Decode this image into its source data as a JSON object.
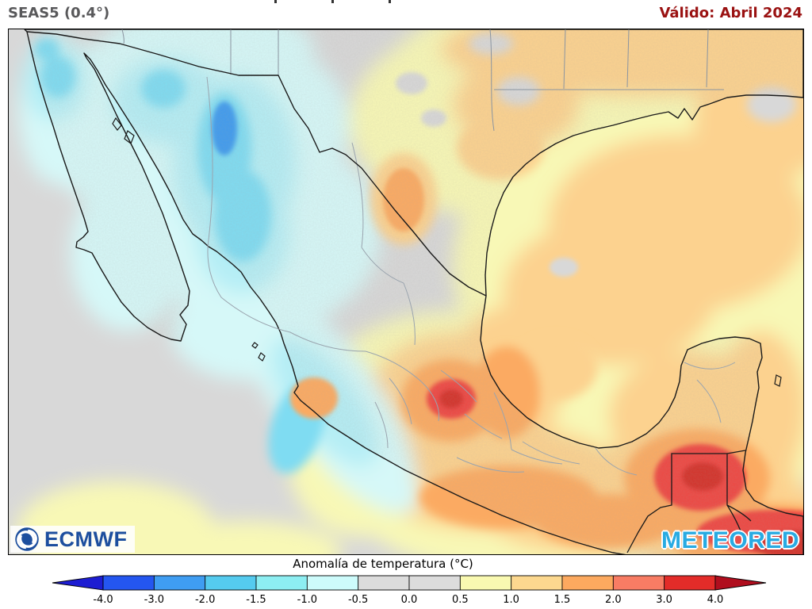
{
  "header": {
    "model": "SEAS5 (0.4°)",
    "valid": "Válido: Abril 2024"
  },
  "logos": {
    "ecmwf": "ECMWF",
    "meteored": "METEORED"
  },
  "colorbar": {
    "title": "Anomalía de temperatura (°C)",
    "ticks": [
      "-4.0",
      "-3.0",
      "-2.0",
      "-1.5",
      "-1.0",
      "-0.5",
      "0.0",
      "0.5",
      "1.0",
      "1.5",
      "2.0",
      "3.0",
      "4.0"
    ],
    "segment_colors": [
      "#2456f0",
      "#3f9df2",
      "#55cbef",
      "#8deef2",
      "#cdfbfb",
      "#dcdcdc",
      "#dcdcdc",
      "#f9f9b1",
      "#fcd88f",
      "#fca95f",
      "#f87c64",
      "#e32c29"
    ],
    "arrow_left_color": "#1d1dd2",
    "arrow_right_color": "#b00e1e"
  },
  "palette": {
    "yellow": "#f8f8b6",
    "tan": "#fcd28f",
    "orange": "#fbaa62",
    "red": "#ee4742",
    "deep_red": "#d4302c",
    "gray": "#d8d8d8",
    "cyan_pale": "#d6f8f8",
    "cyan_light": "#b5eef5",
    "cyan": "#7fdcf2",
    "blue": "#3f9bee"
  },
  "colors": {
    "header_model_text": "#59595b",
    "valid_text": "#9a1212",
    "ecmwf_blue": "#1d4f9e",
    "meteored_blue": "#29abe2",
    "ocean_neutral": "#d8d8d8"
  },
  "map_summary": {
    "northwest_mexico_anomaly": "-0.5 to -3",
    "gulf_of_mexico_and_east_anomaly": "+0.5 to +1.5",
    "central_south_mexico_anomaly": "+1 to +3",
    "guatemala_peten_anomaly": "+3 to +4",
    "pacific_offshore_anomaly": "0 to -1.5"
  }
}
